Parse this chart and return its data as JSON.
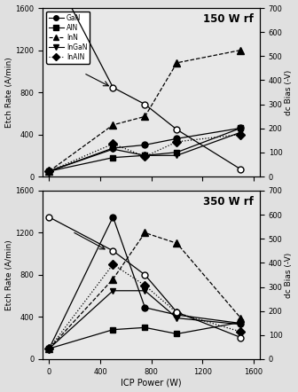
{
  "top_title": "150 W rf",
  "bot_title": "350 W rf",
  "xlabel": "ICP Power (W)",
  "ylabel_left": "Etch Rate (A/min)",
  "ylabel_right": "dc Bias (-V)",
  "x_ticks": [
    0,
    400,
    800,
    1200,
    1600
  ],
  "xlim": [
    -50,
    1650
  ],
  "ylim_left": [
    0,
    1600
  ],
  "ylim_right": [
    0,
    700
  ],
  "y_ticks_left": [
    0,
    400,
    800,
    1200,
    1600
  ],
  "y_ticks_right": [
    0,
    100,
    200,
    300,
    400,
    500,
    600,
    700
  ],
  "top": {
    "GaN": {
      "x": [
        0,
        500,
        750,
        1000,
        1500
      ],
      "y": [
        50,
        270,
        300,
        360,
        460
      ]
    },
    "AlN": {
      "x": [
        0,
        500,
        750,
        1000,
        1500
      ],
      "y": [
        50,
        180,
        200,
        230,
        460
      ]
    },
    "InN": {
      "x": [
        0,
        500,
        750,
        1000,
        1500
      ],
      "y": [
        50,
        490,
        570,
        1080,
        1200
      ]
    },
    "InGaN": {
      "x": [
        0,
        500,
        750,
        1000,
        1500
      ],
      "y": [
        50,
        260,
        200,
        200,
        420
      ]
    },
    "InAlN": {
      "x": [
        0,
        500,
        750,
        1000,
        1500
      ],
      "y": [
        50,
        310,
        190,
        330,
        400
      ]
    },
    "dcBias": {
      "x": [
        0,
        500,
        750,
        1000,
        1500
      ],
      "y": [
        880,
        370,
        300,
        195,
        30
      ],
      "arrow_from": [
        270,
        430
      ],
      "arrow_to": [
        490,
        370
      ]
    }
  },
  "bot": {
    "GaN": {
      "x": [
        0,
        500,
        750,
        1000,
        1500
      ],
      "y": [
        100,
        1350,
        490,
        420,
        340
      ]
    },
    "AlN": {
      "x": [
        0,
        500,
        750,
        1000,
        1500
      ],
      "y": [
        100,
        280,
        300,
        240,
        350
      ]
    },
    "InN": {
      "x": [
        0,
        500,
        750,
        1000,
        1500
      ],
      "y": [
        100,
        760,
        1200,
        1100,
        390
      ]
    },
    "InGaN": {
      "x": [
        0,
        500,
        750,
        1000,
        1500
      ],
      "y": [
        100,
        650,
        650,
        390,
        330
      ]
    },
    "InAlN": {
      "x": [
        0,
        500,
        750,
        1000,
        1500
      ],
      "y": [
        100,
        900,
        700,
        440,
        260
      ]
    },
    "dcBias": {
      "x": [
        0,
        500,
        750,
        1000,
        1500
      ],
      "y": [
        590,
        450,
        350,
        195,
        90
      ],
      "arrow_from": [
        180,
        530
      ],
      "arrow_to": [
        460,
        450
      ]
    }
  },
  "species_order": [
    "GaN",
    "AlN",
    "InN",
    "InGaN",
    "InAlN"
  ],
  "species_styles": {
    "GaN": {
      "linestyle": "-",
      "marker": "o",
      "ms": 5
    },
    "AlN": {
      "linestyle": "-",
      "marker": "s",
      "ms": 5
    },
    "InN": {
      "linestyle": "--",
      "marker": "^",
      "ms": 6
    },
    "InGaN": {
      "linestyle": "-",
      "marker": "v",
      "ms": 5
    },
    "InAlN": {
      "linestyle": ":",
      "marker": "D",
      "ms": 5
    }
  },
  "bg_color": "#e8e8e8"
}
